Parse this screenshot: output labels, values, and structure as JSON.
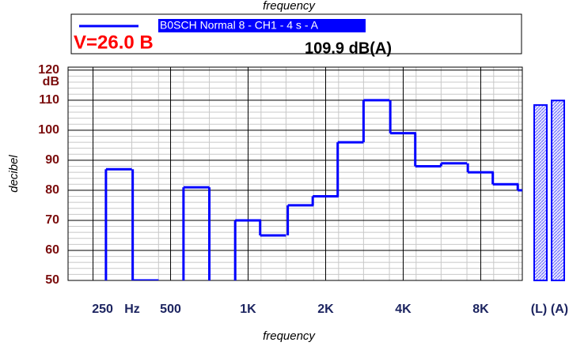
{
  "chart_data": {
    "type": "step",
    "x_label": "frequency",
    "y_label": "decibel",
    "annotations": {
      "voltage": "V=26.0 B",
      "level": "109.9 dB(A)",
      "x_unit": "Hz",
      "y_unit": "dB"
    },
    "xscale": "log",
    "xlim": [
      200,
      11600
    ],
    "xticks": [
      250,
      500,
      {
        "value": 1000,
        "label": "1K"
      },
      {
        "value": 2000,
        "label": "2K"
      },
      {
        "value": 4000,
        "label": "4K"
      },
      {
        "value": 8000,
        "label": "8K"
      }
    ],
    "ylim": [
      50,
      121
    ],
    "yticks": [
      50,
      60,
      70,
      80,
      90,
      100,
      110,
      120
    ],
    "grid": true,
    "x": [
      315,
      400,
      500,
      630,
      800,
      1000,
      1250,
      1600,
      2000,
      2500,
      3150,
      4000,
      5000,
      6300,
      8000,
      10000,
      12500
    ],
    "series": [
      {
        "name": "B0SCH Normal 8 - CH1 - 4 s - A",
        "color": "#0000ff",
        "values": [
          87,
          50,
          null,
          81,
          null,
          70,
          65,
          75,
          78,
          96,
          110,
          99,
          88,
          89,
          86,
          82,
          80
        ]
      }
    ],
    "overall": {
      "categories": [
        "(L)",
        "(A)"
      ],
      "values": [
        108.4,
        109.9
      ]
    }
  }
}
